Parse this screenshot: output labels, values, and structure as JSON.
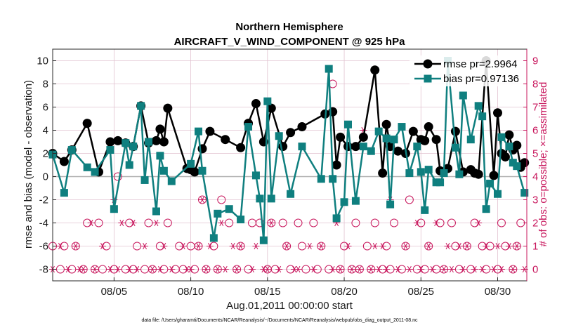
{
  "chart_data": {
    "type": "line",
    "title": "Northern Hemisphere",
    "subtitle": "AIRCRAFT_V_WIND_COMPONENT @ 925 hPa",
    "xlabel": "Aug.01,2011 00:00:00 start",
    "ylabel": "rmse and bias (model - observation)",
    "y2label": "# of obs: o=possible; ×=assimilated",
    "footnote": "data file: /Users/gharamti/Documents/NCAR/Reanalysis/~/Documents/NCAR/Reanalysis/webpub/obs_diag_output_2011-08.nc",
    "xlim": [
      1.0,
      31.9
    ],
    "ylim": [
      -9,
      11
    ],
    "y2lim": [
      -0.5,
      9.5
    ],
    "x_unit": "day of August 2011",
    "xticks": [
      {
        "v": 5,
        "label": "08/05"
      },
      {
        "v": 10,
        "label": "08/10"
      },
      {
        "v": 15,
        "label": "08/15"
      },
      {
        "v": 20,
        "label": "08/20"
      },
      {
        "v": 25,
        "label": "08/25"
      },
      {
        "v": 30,
        "label": "08/30"
      }
    ],
    "yticks": [
      -8,
      -6,
      -4,
      -2,
      0,
      2,
      4,
      6,
      8,
      10
    ],
    "y2ticks": [
      0,
      1,
      2,
      3,
      4,
      5,
      6,
      7,
      8,
      9
    ],
    "grid": true,
    "zero_line": true,
    "legend": {
      "position": "top-right",
      "entries": [
        "rmse pr=2.9964",
        "bias pr=0.97136"
      ]
    },
    "colors": {
      "rmse": "#000000",
      "bias": "#0f7f7f",
      "obs": "#c8175d",
      "grid": "#e2c3d0",
      "zero": "#b0b0b0"
    },
    "series": [
      {
        "name": "rmse",
        "legend": "rmse pr=2.9964",
        "x": [
          1.0,
          1.75,
          2.25,
          3.25,
          4.0,
          4.75,
          5.25,
          5.75,
          6.25,
          6.75,
          7.25,
          7.75,
          8.0,
          8.25,
          8.5,
          9.75,
          10.0,
          10.25,
          10.75,
          11.25,
          12.25,
          13.25,
          13.75,
          14.25,
          14.75,
          15.25,
          16.0,
          16.5,
          17.25,
          18.75,
          19.25,
          19.5,
          19.75,
          20.25,
          20.75,
          21.25,
          22.0,
          22.5,
          22.75,
          23.0,
          23.5,
          24.0,
          24.5,
          25.0,
          25.25,
          25.5,
          26.0,
          26.25,
          26.75,
          27.25,
          27.75,
          28.25,
          28.5,
          28.75,
          29.25,
          29.75,
          30.0,
          30.25,
          30.5,
          30.75,
          31.0,
          31.25,
          31.5,
          31.75
        ],
        "y": [
          2.0,
          1.3,
          2.3,
          4.6,
          0.4,
          3.0,
          3.1,
          2.9,
          2.6,
          6.1,
          2.9,
          3.1,
          4.1,
          3.0,
          5.9,
          0.7,
          0.6,
          0.4,
          2.4,
          3.9,
          3.2,
          2.5,
          4.6,
          6.3,
          3.0,
          5.9,
          2.6,
          3.8,
          4.3,
          5.4,
          5.6,
          1.0,
          3.4,
          2.6,
          2.6,
          3.4,
          9.2,
          0.3,
          4.5,
          2.6,
          2.2,
          2.0,
          3.9,
          3.2,
          3.1,
          4.3,
          3.2,
          0.5,
          0.7,
          3.9,
          0.4,
          0.6,
          0.3,
          0.2,
          10.0,
          0.1,
          5.5,
          2.0,
          1.7,
          3.6,
          2.3,
          2.7,
          0.8,
          1.2
        ]
      },
      {
        "name": "bias",
        "legend": "bias pr=0.97136",
        "x": [
          1.0,
          1.75,
          2.25,
          3.25,
          3.75,
          4.75,
          5.0,
          5.75,
          6.0,
          6.25,
          6.75,
          7.0,
          7.25,
          7.75,
          8.0,
          8.25,
          8.75,
          10.0,
          10.5,
          10.75,
          11.5,
          11.75,
          12.5,
          13.25,
          13.75,
          14.25,
          14.5,
          14.75,
          15.0,
          15.25,
          15.75,
          16.5,
          17.25,
          18.5,
          19.0,
          19.25,
          19.5,
          20.0,
          20.25,
          20.75,
          21.25,
          21.75,
          22.25,
          22.75,
          23.0,
          23.25,
          23.75,
          24.25,
          24.75,
          25.0,
          25.25,
          25.5,
          26.0,
          26.25,
          26.5,
          26.75,
          27.25,
          27.5,
          27.75,
          28.25,
          28.75,
          29.0,
          29.25,
          29.5,
          30.0,
          30.25,
          30.75,
          31.0,
          31.25,
          31.75
        ],
        "y": [
          1.9,
          -1.4,
          2.3,
          0.8,
          0.4,
          2.3,
          -2.8,
          2.9,
          1.0,
          2.6,
          6.1,
          -0.3,
          3.0,
          -3.0,
          1.8,
          0.5,
          -0.4,
          1.1,
          3.9,
          0.5,
          -5.3,
          -3.2,
          -2.8,
          -3.7,
          4.3,
          0.1,
          -1.9,
          -5.5,
          6.5,
          -1.9,
          3.5,
          -1.5,
          2.6,
          -0.2,
          9.3,
          -0.2,
          -3.6,
          -2.2,
          4.5,
          -2.1,
          2.6,
          2.2,
          3.9,
          3.3,
          -2.4,
          3.2,
          4.3,
          0.3,
          2.6,
          0.4,
          -2.9,
          0.6,
          -0.5,
          -0.5,
          0.3,
          10.0,
          2.5,
          0.2,
          7.0,
          3.2,
          6.1,
          5.2,
          -2.8,
          -0.6,
          -1.5,
          3.4,
          2.6,
          1.2,
          0.9,
          -1.4
        ]
      },
      {
        "name": "obs_possible",
        "axis": "right",
        "marker": "circle",
        "x": [
          1.0,
          1.5,
          1.75,
          2.25,
          2.5,
          3.0,
          3.25,
          3.75,
          4.0,
          4.25,
          4.5,
          5.0,
          5.25,
          5.75,
          6.0,
          6.25,
          6.5,
          7.0,
          7.25,
          7.5,
          8.0,
          8.25,
          8.5,
          9.0,
          9.25,
          9.5,
          10.0,
          10.25,
          10.5,
          10.75,
          11.0,
          11.5,
          11.75,
          12.0,
          12.5,
          13.0,
          13.25,
          13.75,
          14.0,
          14.5,
          15.0,
          15.25,
          15.5,
          16.0,
          16.25,
          16.5,
          17.0,
          17.25,
          17.5,
          18.0,
          18.25,
          18.5,
          19.0,
          19.25,
          19.75,
          20.0,
          20.5,
          20.75,
          21.0,
          21.5,
          21.75,
          22.0,
          22.5,
          22.75,
          23.0,
          23.25,
          23.75,
          24.0,
          24.25,
          24.75,
          25.0,
          25.25,
          25.5,
          26.0,
          26.25,
          26.5,
          27.0,
          27.25,
          27.5,
          28.0,
          28.25,
          28.5,
          29.0,
          29.25,
          29.5,
          30.0,
          30.25,
          30.5,
          31.0,
          31.25,
          31.5
        ],
        "y": [
          1,
          0,
          1,
          0,
          1,
          0,
          2,
          0,
          2,
          0,
          1,
          0,
          4,
          0,
          2,
          0,
          1,
          0,
          2,
          0,
          1,
          0,
          2,
          0,
          1,
          0,
          1,
          0,
          1,
          3,
          0,
          1,
          0,
          3,
          2,
          0,
          1,
          0,
          2,
          2,
          0,
          2,
          0,
          2,
          1,
          0,
          2,
          1,
          0,
          2,
          0,
          1,
          0,
          8,
          0,
          1,
          0,
          2,
          0,
          1,
          0,
          2,
          0,
          1,
          0,
          2,
          0,
          1,
          3,
          0,
          2,
          0,
          1,
          0,
          2,
          0,
          2,
          1,
          0,
          1,
          0,
          2,
          1,
          0,
          1,
          0,
          2,
          1,
          0,
          1,
          2
        ]
      },
      {
        "name": "obs_assimilated",
        "axis": "right",
        "marker": "asterisk",
        "x": [
          1.0,
          1.5,
          2.0,
          2.5,
          2.75,
          3.0,
          3.5,
          3.75,
          4.25,
          4.75,
          5.0,
          5.25,
          5.5,
          6.0,
          6.25,
          6.5,
          7.0,
          7.5,
          7.75,
          8.0,
          8.25,
          8.75,
          9.5,
          9.75,
          10.0,
          10.5,
          10.75,
          11.0,
          11.25,
          11.75,
          12.0,
          12.25,
          12.75,
          13.0,
          13.25,
          14.0,
          14.25,
          14.75,
          15.0,
          15.25,
          15.75,
          16.25,
          16.75,
          17.0,
          17.75,
          18.0,
          18.5,
          19.25,
          19.5,
          19.75,
          20.25,
          20.5,
          21.0,
          21.25,
          21.75,
          22.0,
          22.25,
          22.5,
          22.75,
          23.0,
          23.5,
          24.0,
          24.25,
          24.75,
          25.0,
          25.5,
          25.75,
          26.0,
          26.5,
          26.75,
          27.0,
          27.5,
          27.75,
          28.0,
          28.5,
          28.75,
          29.0,
          29.25,
          29.75,
          30.0,
          30.25,
          30.75,
          31.0,
          31.25,
          31.75
        ],
        "y": [
          0,
          1,
          0,
          1,
          0,
          0,
          2,
          0,
          1,
          0,
          3,
          0,
          2,
          0,
          2,
          0,
          1,
          0,
          2,
          0,
          1,
          0,
          1,
          0,
          0,
          1,
          3,
          0,
          1,
          0,
          2,
          0,
          1,
          0,
          1,
          0,
          1,
          0,
          0,
          2,
          0,
          1,
          0,
          0,
          1,
          0,
          1,
          0,
          2,
          0,
          1,
          0,
          0,
          6,
          0,
          1,
          0,
          1,
          0,
          3,
          0,
          1,
          0,
          2,
          0,
          1,
          0,
          2,
          0,
          1,
          0,
          1,
          0,
          1,
          0,
          2,
          0,
          1,
          0,
          1,
          0,
          1,
          0,
          1,
          0
        ]
      }
    ]
  }
}
